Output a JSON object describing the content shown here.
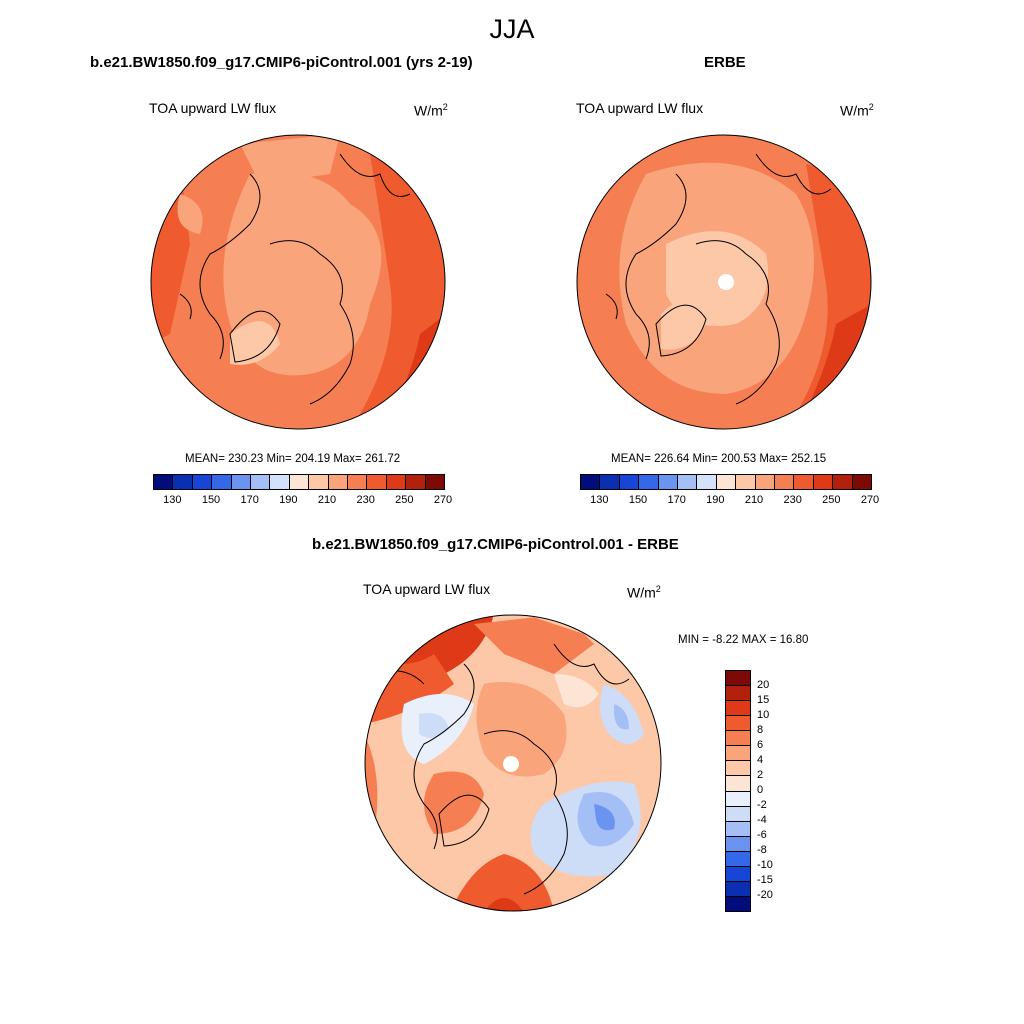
{
  "figure": {
    "title": "JJA"
  },
  "panels": {
    "left": {
      "title": "b.e21.BW1850.f09_g17.CMIP6-piControl.001 (yrs 2-19)",
      "variable": "TOA upward LW flux",
      "units_base": "W/m",
      "units_exp": "2",
      "stats": "MEAN= 230.23  Min= 204.19  Max= 261.72"
    },
    "right": {
      "title": "ERBE",
      "variable": "TOA upward LW flux",
      "units_base": "W/m",
      "units_exp": "2",
      "stats": "MEAN= 226.64  Min= 200.53  Max= 252.15"
    },
    "diff": {
      "title": "b.e21.BW1850.f09_g17.CMIP6-piControl.001 - ERBE",
      "variable": "TOA upward LW flux",
      "units_base": "W/m",
      "units_exp": "2",
      "stats": "MIN =  -8.22 MAX =  16.80"
    }
  },
  "colorbar_abs": {
    "labels": [
      "130",
      "150",
      "170",
      "190",
      "210",
      "230",
      "250",
      "270"
    ],
    "colors": [
      "#000d7a",
      "#0a2fb0",
      "#1746d6",
      "#3468e8",
      "#6b94f0",
      "#a3bff5",
      "#d3e2fa",
      "#fde5d5",
      "#fcc8a8",
      "#f9a47b",
      "#f57f53",
      "#ef5b2f",
      "#de3a18",
      "#b3200b",
      "#7d0a04"
    ]
  },
  "colorbar_diff": {
    "labels": [
      "20",
      "15",
      "10",
      "8",
      "6",
      "4",
      "2",
      "0",
      "-2",
      "-4",
      "-6",
      "-8",
      "-10",
      "-15",
      "-20"
    ],
    "colors": [
      "#7d0a04",
      "#b3200b",
      "#de3a18",
      "#ef5b2f",
      "#f57f53",
      "#f9a47b",
      "#fcc8a8",
      "#fde5d5",
      "#e9f0fb",
      "#cddcf7",
      "#a3bff5",
      "#6b94f0",
      "#3468e8",
      "#1746d6",
      "#0a2fb0",
      "#000d7a"
    ]
  }
}
